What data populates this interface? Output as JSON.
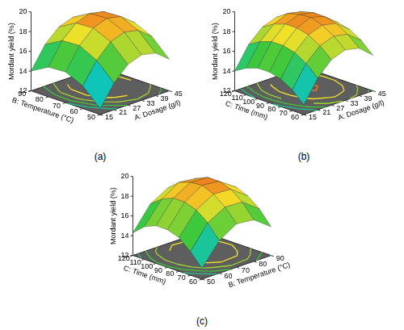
{
  "chart_data": [
    {
      "type": "surface",
      "title": "(a)",
      "x_label": "A: Dosage (g/l)",
      "y_label": "B: Temperature (°C)",
      "z_label": "Mordant yield (%)",
      "x": [
        15,
        21,
        27,
        33,
        39,
        45
      ],
      "y": [
        50,
        60,
        70,
        80,
        90
      ],
      "values": [
        [
          12.6,
          14.7,
          16.1,
          16.6,
          16.3,
          15.2
        ],
        [
          14.3,
          16.4,
          17.8,
          18.3,
          18.0,
          16.9
        ],
        [
          15.1,
          17.3,
          18.6,
          19.1,
          18.8,
          17.7
        ],
        [
          15.0,
          17.2,
          18.5,
          19.0,
          18.7,
          17.6
        ],
        [
          14.0,
          16.2,
          17.5,
          18.0,
          17.7,
          16.6
        ]
      ],
      "xlim": [
        15,
        45
      ],
      "xticks": [
        15,
        21,
        27,
        33,
        39,
        45
      ],
      "ylim": [
        50,
        90
      ],
      "yticks": [
        50,
        60,
        70,
        80,
        90
      ],
      "zlim": [
        12,
        20
      ],
      "zticks": [
        12,
        14,
        16,
        18,
        20
      ],
      "contours": [
        15,
        16,
        17,
        18,
        19
      ]
    },
    {
      "type": "surface",
      "title": "(b)",
      "x_label": "A: Dosage (g/l)",
      "y_label": "C: Time (mm)",
      "z_label": "Mordant yield (%)",
      "x": [
        15,
        21,
        27,
        33,
        39,
        45
      ],
      "y": [
        60,
        70,
        80,
        90,
        100,
        110,
        120
      ],
      "values": [
        [
          13.0,
          15.2,
          16.6,
          17.1,
          16.8,
          15.6
        ],
        [
          14.1,
          16.3,
          17.6,
          18.1,
          17.8,
          16.7
        ],
        [
          14.8,
          17.0,
          18.3,
          18.8,
          18.5,
          17.4
        ],
        [
          15.1,
          17.3,
          18.6,
          19.2,
          18.8,
          17.7
        ],
        [
          15.1,
          17.3,
          18.6,
          19.1,
          18.8,
          17.7
        ],
        [
          14.7,
          16.9,
          18.2,
          18.8,
          18.5,
          17.3
        ],
        [
          14.0,
          16.2,
          17.5,
          18.0,
          17.7,
          16.6
        ]
      ],
      "xlim": [
        15,
        45
      ],
      "xticks": [
        15,
        21,
        27,
        33,
        39,
        45
      ],
      "ylim": [
        60,
        120
      ],
      "yticks": [
        60,
        70,
        80,
        90,
        100,
        110,
        120
      ],
      "zlim": [
        12,
        20
      ],
      "zticks": [
        12,
        14,
        16,
        18,
        20
      ],
      "contours": [
        15,
        16,
        17,
        18,
        19
      ]
    },
    {
      "type": "surface",
      "title": "(c)",
      "x_label": "B: Temperature (°C)",
      "y_label": "C: Time (mm)",
      "z_label": "Mordant yield (%)",
      "x": [
        50,
        60,
        70,
        80,
        90
      ],
      "y": [
        60,
        70,
        80,
        90,
        100,
        110,
        120
      ],
      "values": [
        [
          13.1,
          15.3,
          16.4,
          16.2,
          14.9
        ],
        [
          14.4,
          16.7,
          17.7,
          17.6,
          16.3
        ],
        [
          15.4,
          17.6,
          18.6,
          18.5,
          17.2
        ],
        [
          15.8,
          18.0,
          19.1,
          18.9,
          17.7
        ],
        [
          15.8,
          18.0,
          19.0,
          18.9,
          17.6
        ],
        [
          15.3,
          17.5,
          18.6,
          18.4,
          17.1
        ],
        [
          14.3,
          16.6,
          17.6,
          17.5,
          16.2
        ]
      ],
      "xlim": [
        50,
        90
      ],
      "xticks": [
        50,
        60,
        70,
        80,
        90
      ],
      "ylim": [
        60,
        120
      ],
      "yticks": [
        60,
        70,
        80,
        90,
        100,
        110,
        120
      ],
      "zlim": [
        12,
        20
      ],
      "zticks": [
        12,
        14,
        16,
        18,
        20
      ],
      "contours": [
        15,
        16,
        17,
        18,
        19
      ]
    }
  ]
}
